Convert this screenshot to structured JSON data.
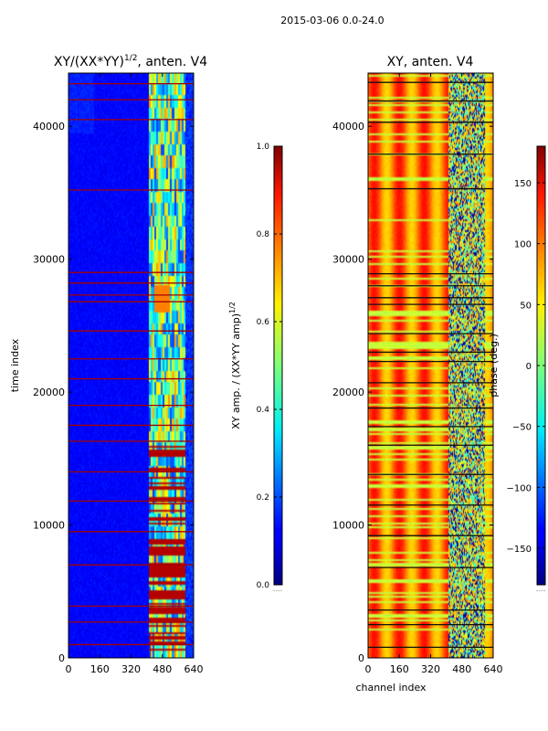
{
  "suptitle": "2015-03-06 0.0-24.0",
  "chart_data": [
    {
      "type": "heatmap",
      "title_main": "XY/(XX*YY)",
      "title_sup": "1/2",
      "title_rest": ", anten. V4",
      "xlabel": "",
      "ylabel": "time index",
      "xlim": [
        0,
        640
      ],
      "ylim": [
        0,
        44000
      ],
      "xticks": [
        0,
        160,
        320,
        480,
        640
      ],
      "yticks": [
        0,
        10000,
        20000,
        30000,
        40000
      ],
      "colorbar": {
        "label_main": "XY amp. / (XX*YY amp)",
        "label_sup": "1/2",
        "range": [
          0.0,
          1.0
        ],
        "ticks": [
          "0.0",
          "0.2",
          "0.4",
          "0.6",
          "0.8",
          "1.0"
        ],
        "tick_values": [
          0.0,
          0.2,
          0.4,
          0.6,
          0.8,
          1.0
        ]
      },
      "description": "normalized amplitude; mostly low (~0.1) for channels 0-410, higher (0.3-0.8) for channels 410-600; flagged rows near 1.0",
      "flagged_rows": [
        1000,
        2700,
        3900,
        7000,
        9500,
        11800,
        14000,
        16300,
        17500,
        19000,
        21000,
        22500,
        24600,
        26800,
        27300,
        28200,
        29000,
        35200,
        40500,
        42000,
        43200
      ]
    },
    {
      "type": "heatmap",
      "title_main": "XY, anten. V4",
      "xlabel": "channel index",
      "ylabel": "",
      "xlim": [
        0,
        640
      ],
      "ylim": [
        0,
        44000
      ],
      "xticks": [
        0,
        160,
        320,
        480,
        640
      ],
      "yticks": [
        0,
        10000,
        20000,
        30000,
        40000
      ],
      "colorbar": {
        "label_main": "phase (deg.)",
        "range": [
          -180,
          180
        ],
        "ticks": [
          "150",
          "100",
          "50",
          "0",
          "−50",
          "−100",
          "−150"
        ],
        "tick_values": [
          150,
          100,
          50,
          0,
          -50,
          -100,
          -150
        ]
      },
      "description": "XY phase in degrees; mostly 60-130 deg with vertical banding; noisier (-180 to 50 deg) for channels 410-600",
      "flagged_rows": [
        800,
        2500,
        3600,
        6800,
        9200,
        11500,
        13800,
        16000,
        17400,
        18800,
        20700,
        22300,
        23000,
        24400,
        26600,
        27100,
        28000,
        28900,
        35300,
        37900,
        40300,
        41900,
        43300
      ]
    }
  ]
}
